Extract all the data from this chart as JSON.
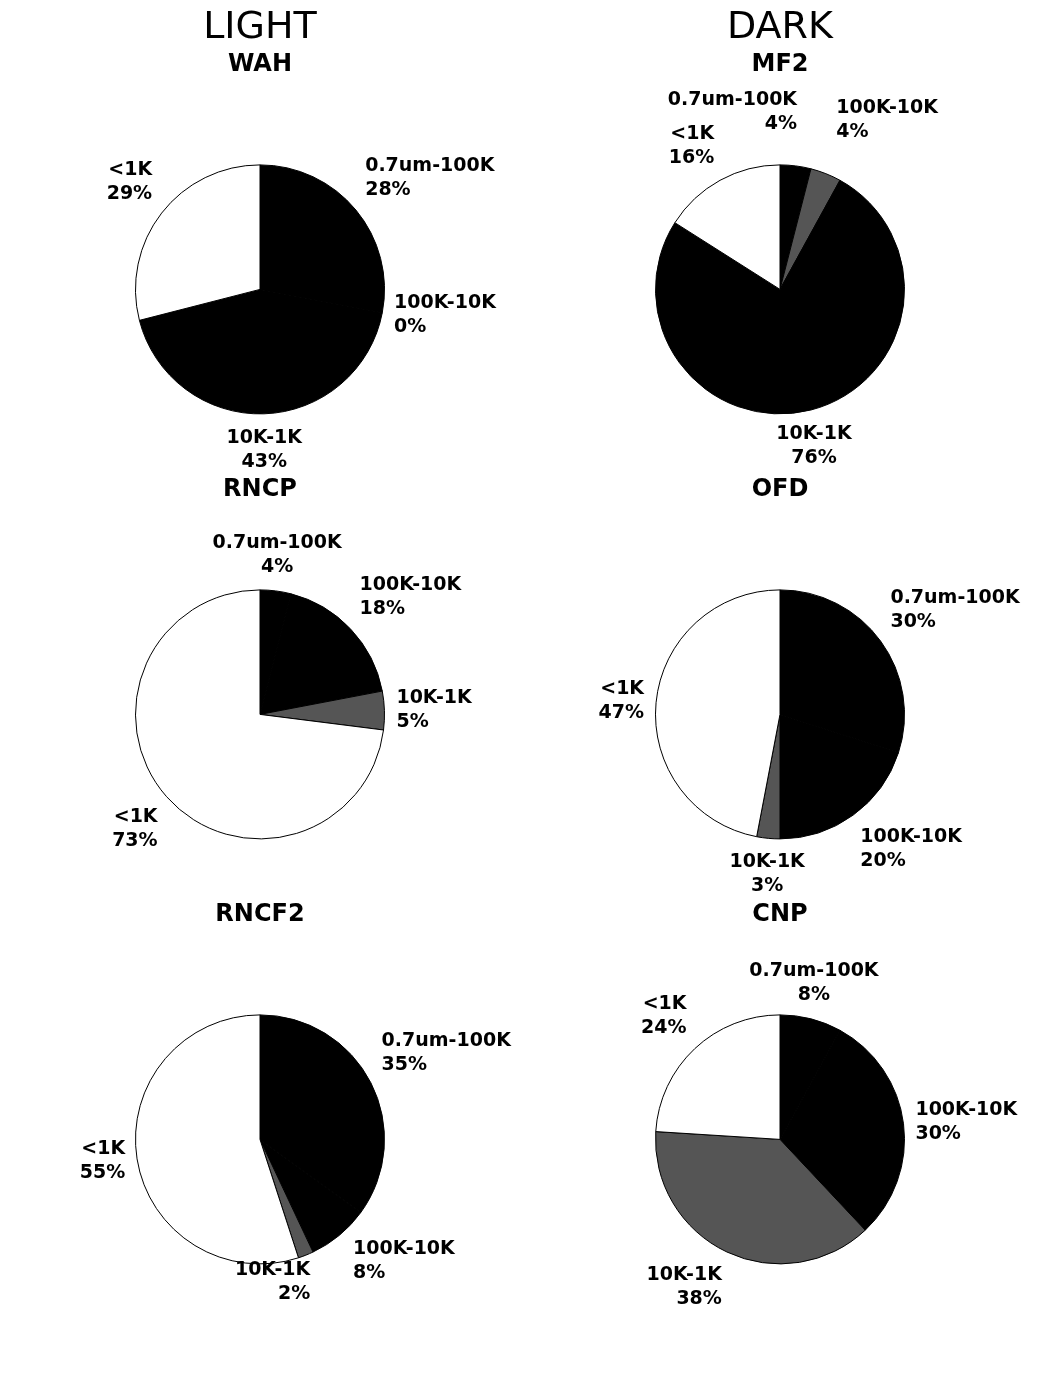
{
  "chart_data": [
    {
      "type": "pie",
      "title": "WAH",
      "annotations": [
        "LIGHT"
      ],
      "categories": [
        "0.7um-100K",
        "100K-10K",
        "10K-1K",
        "<1K"
      ],
      "values": [
        28,
        0,
        43,
        29
      ],
      "value_labels": [
        "28%",
        "0%",
        "43%",
        "29%"
      ],
      "colors": [
        "#000000",
        "#555555",
        "#000000",
        "#ffffff"
      ]
    },
    {
      "type": "pie",
      "title": "MF2",
      "annotations": [
        "DARK"
      ],
      "categories": [
        "0.7um-100K",
        "100K-10K",
        "10K-1K",
        "<1K"
      ],
      "values": [
        4,
        4,
        76,
        16
      ],
      "value_labels": [
        "4%",
        "4%",
        "76%",
        "16%"
      ],
      "colors": [
        "#000000",
        "#555555",
        "#000000",
        "#ffffff"
      ]
    },
    {
      "type": "pie",
      "title": "RNCP",
      "categories": [
        "0.7um-100K",
        "100K-10K",
        "10K-1K",
        "<1K"
      ],
      "values": [
        4,
        18,
        5,
        73
      ],
      "value_labels": [
        "4%",
        "18%",
        "5%",
        "73%"
      ],
      "colors": [
        "#000000",
        "#000000",
        "#555555",
        "#ffffff"
      ]
    },
    {
      "type": "pie",
      "title": "OFD",
      "categories": [
        "0.7um-100K",
        "100K-10K",
        "10K-1K",
        "<1K"
      ],
      "values": [
        30,
        20,
        3,
        47
      ],
      "value_labels": [
        "30%",
        "20%",
        "3%",
        "47%"
      ],
      "colors": [
        "#000000",
        "#000000",
        "#555555",
        "#ffffff"
      ]
    },
    {
      "type": "pie",
      "title": "RNCF2",
      "categories": [
        "0.7um-100K",
        "100K-10K",
        "10K-1K",
        "<1K"
      ],
      "values": [
        35,
        8,
        2,
        55
      ],
      "value_labels": [
        "35%",
        "8%",
        "2%",
        "55%"
      ],
      "colors": [
        "#000000",
        "#000000",
        "#555555",
        "#ffffff"
      ]
    },
    {
      "type": "pie",
      "title": "CNP",
      "categories": [
        "0.7um-100K",
        "100K-10K",
        "10K-1K",
        "<1K"
      ],
      "values": [
        8,
        30,
        38,
        24
      ],
      "value_labels": [
        "8%",
        "30%",
        "38%",
        "24%"
      ],
      "colors": [
        "#000000",
        "#000000",
        "#555555",
        "#ffffff"
      ]
    }
  ]
}
